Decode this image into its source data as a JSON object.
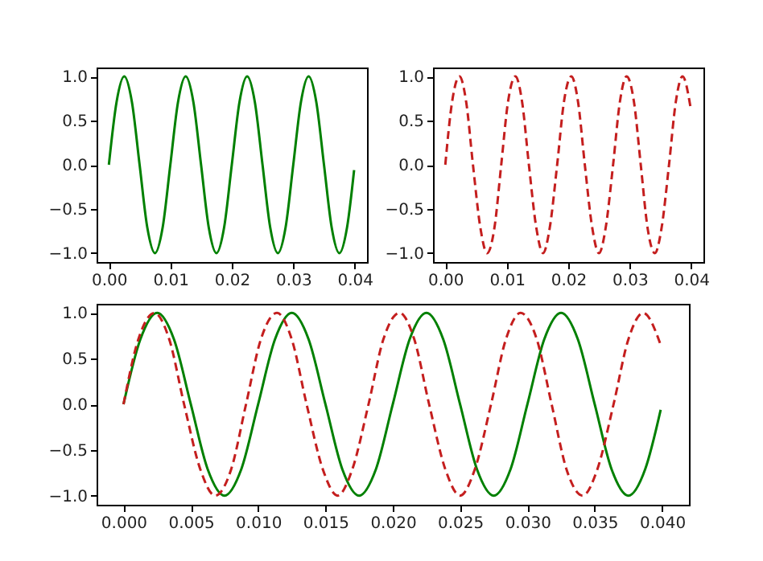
{
  "chart_data": [
    {
      "type": "line",
      "xlim": [
        -0.002,
        0.042
      ],
      "ylim": [
        -1.1,
        1.1
      ],
      "xticks": [
        {
          "value": 0,
          "label": "0.00"
        },
        {
          "value": 0.01,
          "label": "0.01"
        },
        {
          "value": 0.02,
          "label": "0.02"
        },
        {
          "value": 0.03,
          "label": "0.03"
        },
        {
          "value": 0.04,
          "label": "0.04"
        }
      ],
      "yticks": [
        {
          "value": -1,
          "label": "−1.0"
        },
        {
          "value": -0.5,
          "label": "−0.5"
        },
        {
          "value": 0,
          "label": "0.0"
        },
        {
          "value": 0.5,
          "label": "0.5"
        },
        {
          "value": 1,
          "label": "1.0"
        }
      ],
      "grid": false,
      "marker": "none",
      "series": [
        {
          "color": "#008000",
          "line_style": "solid",
          "x": [
            0,
            0.00125,
            0.0025,
            0.00375,
            0.005,
            0.00625,
            0.0075,
            0.00875,
            0.01,
            0.01125,
            0.0125,
            0.01375,
            0.015,
            0.01625,
            0.0175,
            0.01875,
            0.02,
            0.02125,
            0.0225,
            0.02375,
            0.025,
            0.02625,
            0.0275,
            0.02875,
            0.03,
            0.03125,
            0.0325,
            0.03375,
            0.035,
            0.03625,
            0.0375,
            0.03875,
            0.0399
          ],
          "values": [
            0,
            0.71,
            1,
            0.71,
            0,
            -0.71,
            -1,
            -0.71,
            0,
            0.71,
            1,
            0.71,
            0,
            -0.71,
            -1,
            -0.71,
            0,
            0.71,
            1,
            0.71,
            0,
            -0.71,
            -1,
            -0.71,
            0,
            0.71,
            1,
            0.71,
            0,
            -0.71,
            -1,
            -0.71,
            -0.06
          ]
        }
      ]
    },
    {
      "type": "line",
      "xlim": [
        -0.002,
        0.042
      ],
      "ylim": [
        -1.1,
        1.1
      ],
      "xticks": [
        {
          "value": 0,
          "label": "0.00"
        },
        {
          "value": 0.01,
          "label": "0.01"
        },
        {
          "value": 0.02,
          "label": "0.02"
        },
        {
          "value": 0.03,
          "label": "0.03"
        },
        {
          "value": 0.04,
          "label": "0.04"
        }
      ],
      "yticks": [
        {
          "value": -1,
          "label": "−1.0"
        },
        {
          "value": -0.5,
          "label": "−0.5"
        },
        {
          "value": 0,
          "label": "0.0"
        },
        {
          "value": 0.5,
          "label": "0.5"
        },
        {
          "value": 1,
          "label": "1.0"
        }
      ],
      "grid": false,
      "marker": "none",
      "series": [
        {
          "color": "#c41e1e",
          "line_style": "dashed",
          "x": [
            0,
            0.0011,
            0.0023,
            0.0034,
            0.0045,
            0.0057,
            0.0068,
            0.008,
            0.0091,
            0.0102,
            0.0114,
            0.0125,
            0.0136,
            0.0148,
            0.0159,
            0.017,
            0.0182,
            0.0193,
            0.0205,
            0.0216,
            0.0227,
            0.0239,
            0.025,
            0.0261,
            0.0273,
            0.0284,
            0.0295,
            0.0307,
            0.0318,
            0.0329,
            0.0341,
            0.0352,
            0.0364,
            0.0375,
            0.0386,
            0.0399
          ],
          "values": [
            0,
            0.71,
            1,
            0.71,
            0,
            -0.71,
            -1,
            -0.71,
            0,
            0.71,
            1,
            0.71,
            0,
            -0.71,
            -1,
            -0.71,
            0,
            0.71,
            1,
            0.71,
            0,
            -0.71,
            -1,
            -0.71,
            0,
            0.71,
            1,
            0.71,
            0,
            -0.71,
            -1,
            -0.71,
            0,
            0.71,
            1,
            0.65
          ]
        }
      ]
    },
    {
      "type": "line",
      "xlim": [
        -0.002,
        0.042
      ],
      "ylim": [
        -1.1,
        1.1
      ],
      "xticks": [
        {
          "value": 0,
          "label": "0.000"
        },
        {
          "value": 0.005,
          "label": "0.005"
        },
        {
          "value": 0.01,
          "label": "0.010"
        },
        {
          "value": 0.015,
          "label": "0.015"
        },
        {
          "value": 0.02,
          "label": "0.020"
        },
        {
          "value": 0.025,
          "label": "0.025"
        },
        {
          "value": 0.03,
          "label": "0.030"
        },
        {
          "value": 0.035,
          "label": "0.035"
        },
        {
          "value": 0.04,
          "label": "0.040"
        }
      ],
      "yticks": [
        {
          "value": -1,
          "label": "−1.0"
        },
        {
          "value": -0.5,
          "label": "−0.5"
        },
        {
          "value": 0,
          "label": "0.0"
        },
        {
          "value": 0.5,
          "label": "0.5"
        },
        {
          "value": 1,
          "label": "1.0"
        }
      ],
      "grid": false,
      "marker": "none",
      "series": [
        {
          "color": "#008000",
          "line_style": "solid",
          "x": [
            0,
            0.00125,
            0.0025,
            0.00375,
            0.005,
            0.00625,
            0.0075,
            0.00875,
            0.01,
            0.01125,
            0.0125,
            0.01375,
            0.015,
            0.01625,
            0.0175,
            0.01875,
            0.02,
            0.02125,
            0.0225,
            0.02375,
            0.025,
            0.02625,
            0.0275,
            0.02875,
            0.03,
            0.03125,
            0.0325,
            0.03375,
            0.035,
            0.03625,
            0.0375,
            0.03875,
            0.0399
          ],
          "values": [
            0,
            0.71,
            1,
            0.71,
            0,
            -0.71,
            -1,
            -0.71,
            0,
            0.71,
            1,
            0.71,
            0,
            -0.71,
            -1,
            -0.71,
            0,
            0.71,
            1,
            0.71,
            0,
            -0.71,
            -1,
            -0.71,
            0,
            0.71,
            1,
            0.71,
            0,
            -0.71,
            -1,
            -0.71,
            -0.06
          ]
        },
        {
          "color": "#c41e1e",
          "line_style": "dashed",
          "x": [
            0,
            0.0011,
            0.0023,
            0.0034,
            0.0045,
            0.0057,
            0.0068,
            0.008,
            0.0091,
            0.0102,
            0.0114,
            0.0125,
            0.0136,
            0.0148,
            0.0159,
            0.017,
            0.0182,
            0.0193,
            0.0205,
            0.0216,
            0.0227,
            0.0239,
            0.025,
            0.0261,
            0.0273,
            0.0284,
            0.0295,
            0.0307,
            0.0318,
            0.0329,
            0.0341,
            0.0352,
            0.0364,
            0.0375,
            0.0386,
            0.0399
          ],
          "values": [
            0,
            0.71,
            1,
            0.71,
            0,
            -0.71,
            -1,
            -0.71,
            0,
            0.71,
            1,
            0.71,
            0,
            -0.71,
            -1,
            -0.71,
            0,
            0.71,
            1,
            0.71,
            0,
            -0.71,
            -1,
            -0.71,
            0,
            0.71,
            1,
            0.71,
            0,
            -0.71,
            -1,
            -0.71,
            0,
            0.71,
            1,
            0.65
          ]
        }
      ]
    }
  ]
}
